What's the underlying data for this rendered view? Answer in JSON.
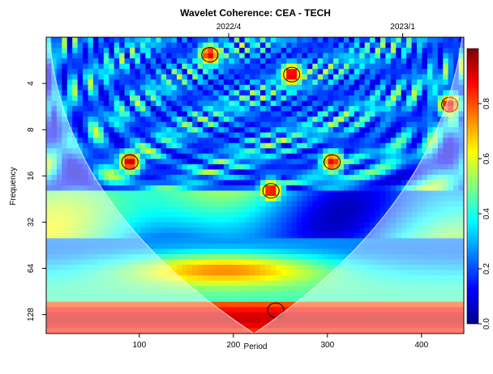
{
  "chart_data": {
    "type": "heatmap",
    "title": "Wavelet Coherence: CEA - TECH",
    "xlabel": "Period",
    "ylabel": "Frequency",
    "x_ticks": [
      100,
      200,
      300,
      400
    ],
    "xlim": [
      1,
      445
    ],
    "y_ticks": [
      4,
      8,
      16,
      32,
      64,
      128
    ],
    "ylim": [
      2,
      170
    ],
    "y_scale": "log2",
    "y_reversed": true,
    "top_axis_ticks": [
      {
        "label": "2022/4",
        "x": 195
      },
      {
        "label": "2023/1",
        "x": 380
      }
    ],
    "colorbar": {
      "range": [
        0,
        1
      ],
      "ticks": [
        0,
        0.2,
        0.4,
        0.6,
        0.8
      ],
      "tick_labels": [
        "0.0",
        "0.2",
        "0.4",
        "0.6",
        "0.8"
      ],
      "colormap": "jet",
      "position": "right"
    },
    "cone_of_influence": {
      "apex_period": 222,
      "apex_frequency": 170,
      "outside_shading": "semi-transparent white"
    },
    "high_coherence_regions": [
      {
        "period": 90,
        "frequency": 13,
        "coherence": 0.95
      },
      {
        "period": 305,
        "frequency": 13,
        "coherence": 0.9
      },
      {
        "period": 240,
        "frequency": 20,
        "coherence": 0.92
      },
      {
        "period": 262,
        "frequency": 3.5,
        "coherence": 0.95
      },
      {
        "period": 175,
        "frequency": 2.6,
        "coherence": 0.9
      },
      {
        "period": 245,
        "frequency": 120,
        "coherence": 0.9
      },
      {
        "period": 430,
        "frequency": 5.5,
        "coherence": 0.95
      }
    ]
  }
}
